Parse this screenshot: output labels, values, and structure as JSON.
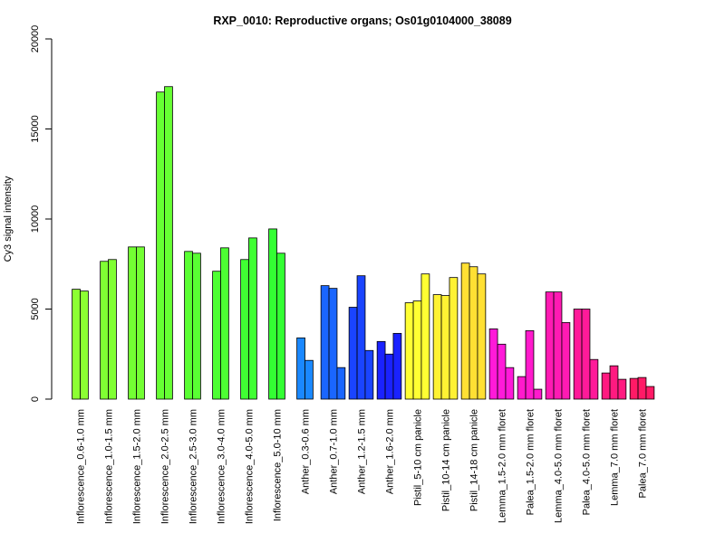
{
  "chart_data": {
    "type": "bar",
    "title": "RXP_0010: Reproductive organs; Os01g0104000_38089",
    "xlabel": "",
    "ylabel": "Cy3 signal intensity",
    "ylim": [
      0,
      20000
    ],
    "yticks": [
      0,
      5000,
      10000,
      15000,
      20000
    ],
    "grid": false,
    "legend": "none",
    "groups": [
      {
        "label": "Inflorescence_0.6-1.0 mm",
        "color": "#8cff33",
        "values": [
          6100,
          6000
        ]
      },
      {
        "label": "Inflorescence_1.0-1.5 mm",
        "color": "#80ff33",
        "values": [
          7650,
          7750
        ]
      },
      {
        "label": "Inflorescence_1.5-2.0 mm",
        "color": "#73ff33",
        "values": [
          8450,
          8450
        ]
      },
      {
        "label": "Inflorescence_2.0-2.5 mm",
        "color": "#66ff33",
        "values": [
          17050,
          17350
        ]
      },
      {
        "label": "Inflorescence_2.5-3.0 mm",
        "color": "#59ff33",
        "values": [
          8200,
          8100
        ]
      },
      {
        "label": "Inflorescence_3.0-4.0 mm",
        "color": "#4dff33",
        "values": [
          7100,
          8400
        ]
      },
      {
        "label": "Inflorescence_4.0-5.0 mm",
        "color": "#40ff33",
        "values": [
          7750,
          8950
        ]
      },
      {
        "label": "Inflorescence_5.0-10 mm",
        "color": "#33ff33",
        "values": [
          9450,
          8100
        ]
      },
      {
        "label": "Anther_0.3-0.6 mm",
        "color": "#1a88ff",
        "values": [
          3400,
          2150
        ]
      },
      {
        "label": "Anther_0.7-1.0 mm",
        "color": "#1a66ff",
        "values": [
          6300,
          6150,
          1750
        ]
      },
      {
        "label": "Anther_1.2-1.5 mm",
        "color": "#1a44ff",
        "values": [
          5100,
          6850,
          2700
        ]
      },
      {
        "label": "Anther_1.6-2.0 mm",
        "color": "#1a22ff",
        "values": [
          3200,
          2500,
          3650
        ]
      },
      {
        "label": "Pistil_5-10 cm panicle",
        "color": "#ffff33",
        "values": [
          5350,
          5450,
          6950
        ]
      },
      {
        "label": "Pistil_10-14 cm panicle",
        "color": "#fff233",
        "values": [
          5800,
          5750,
          6750
        ]
      },
      {
        "label": "Pistil_14-18 cm panicle",
        "color": "#ffe033",
        "values": [
          7550,
          7350,
          6950
        ]
      },
      {
        "label": "Lemma_1.5-2.0 mm floret",
        "color": "#ff1ad9",
        "values": [
          3900,
          3050,
          1750
        ]
      },
      {
        "label": "Palea_1.5-2.0 mm floret",
        "color": "#ff1acc",
        "values": [
          1250,
          3800,
          550
        ]
      },
      {
        "label": "Lemma_4.0-5.0 mm floret",
        "color": "#ff1ab3",
        "values": [
          5950,
          5950,
          4250
        ]
      },
      {
        "label": "Palea_4.0-5.0 mm floret",
        "color": "#ff1a99",
        "values": [
          5000,
          5000,
          2200
        ]
      },
      {
        "label": "Lemma_7.0 mm floret",
        "color": "#ff1a80",
        "values": [
          1450,
          1850,
          1100
        ]
      },
      {
        "label": "Palea_7.0 mm floret",
        "color": "#ff1a66",
        "values": [
          1150,
          1200,
          700
        ]
      }
    ]
  }
}
